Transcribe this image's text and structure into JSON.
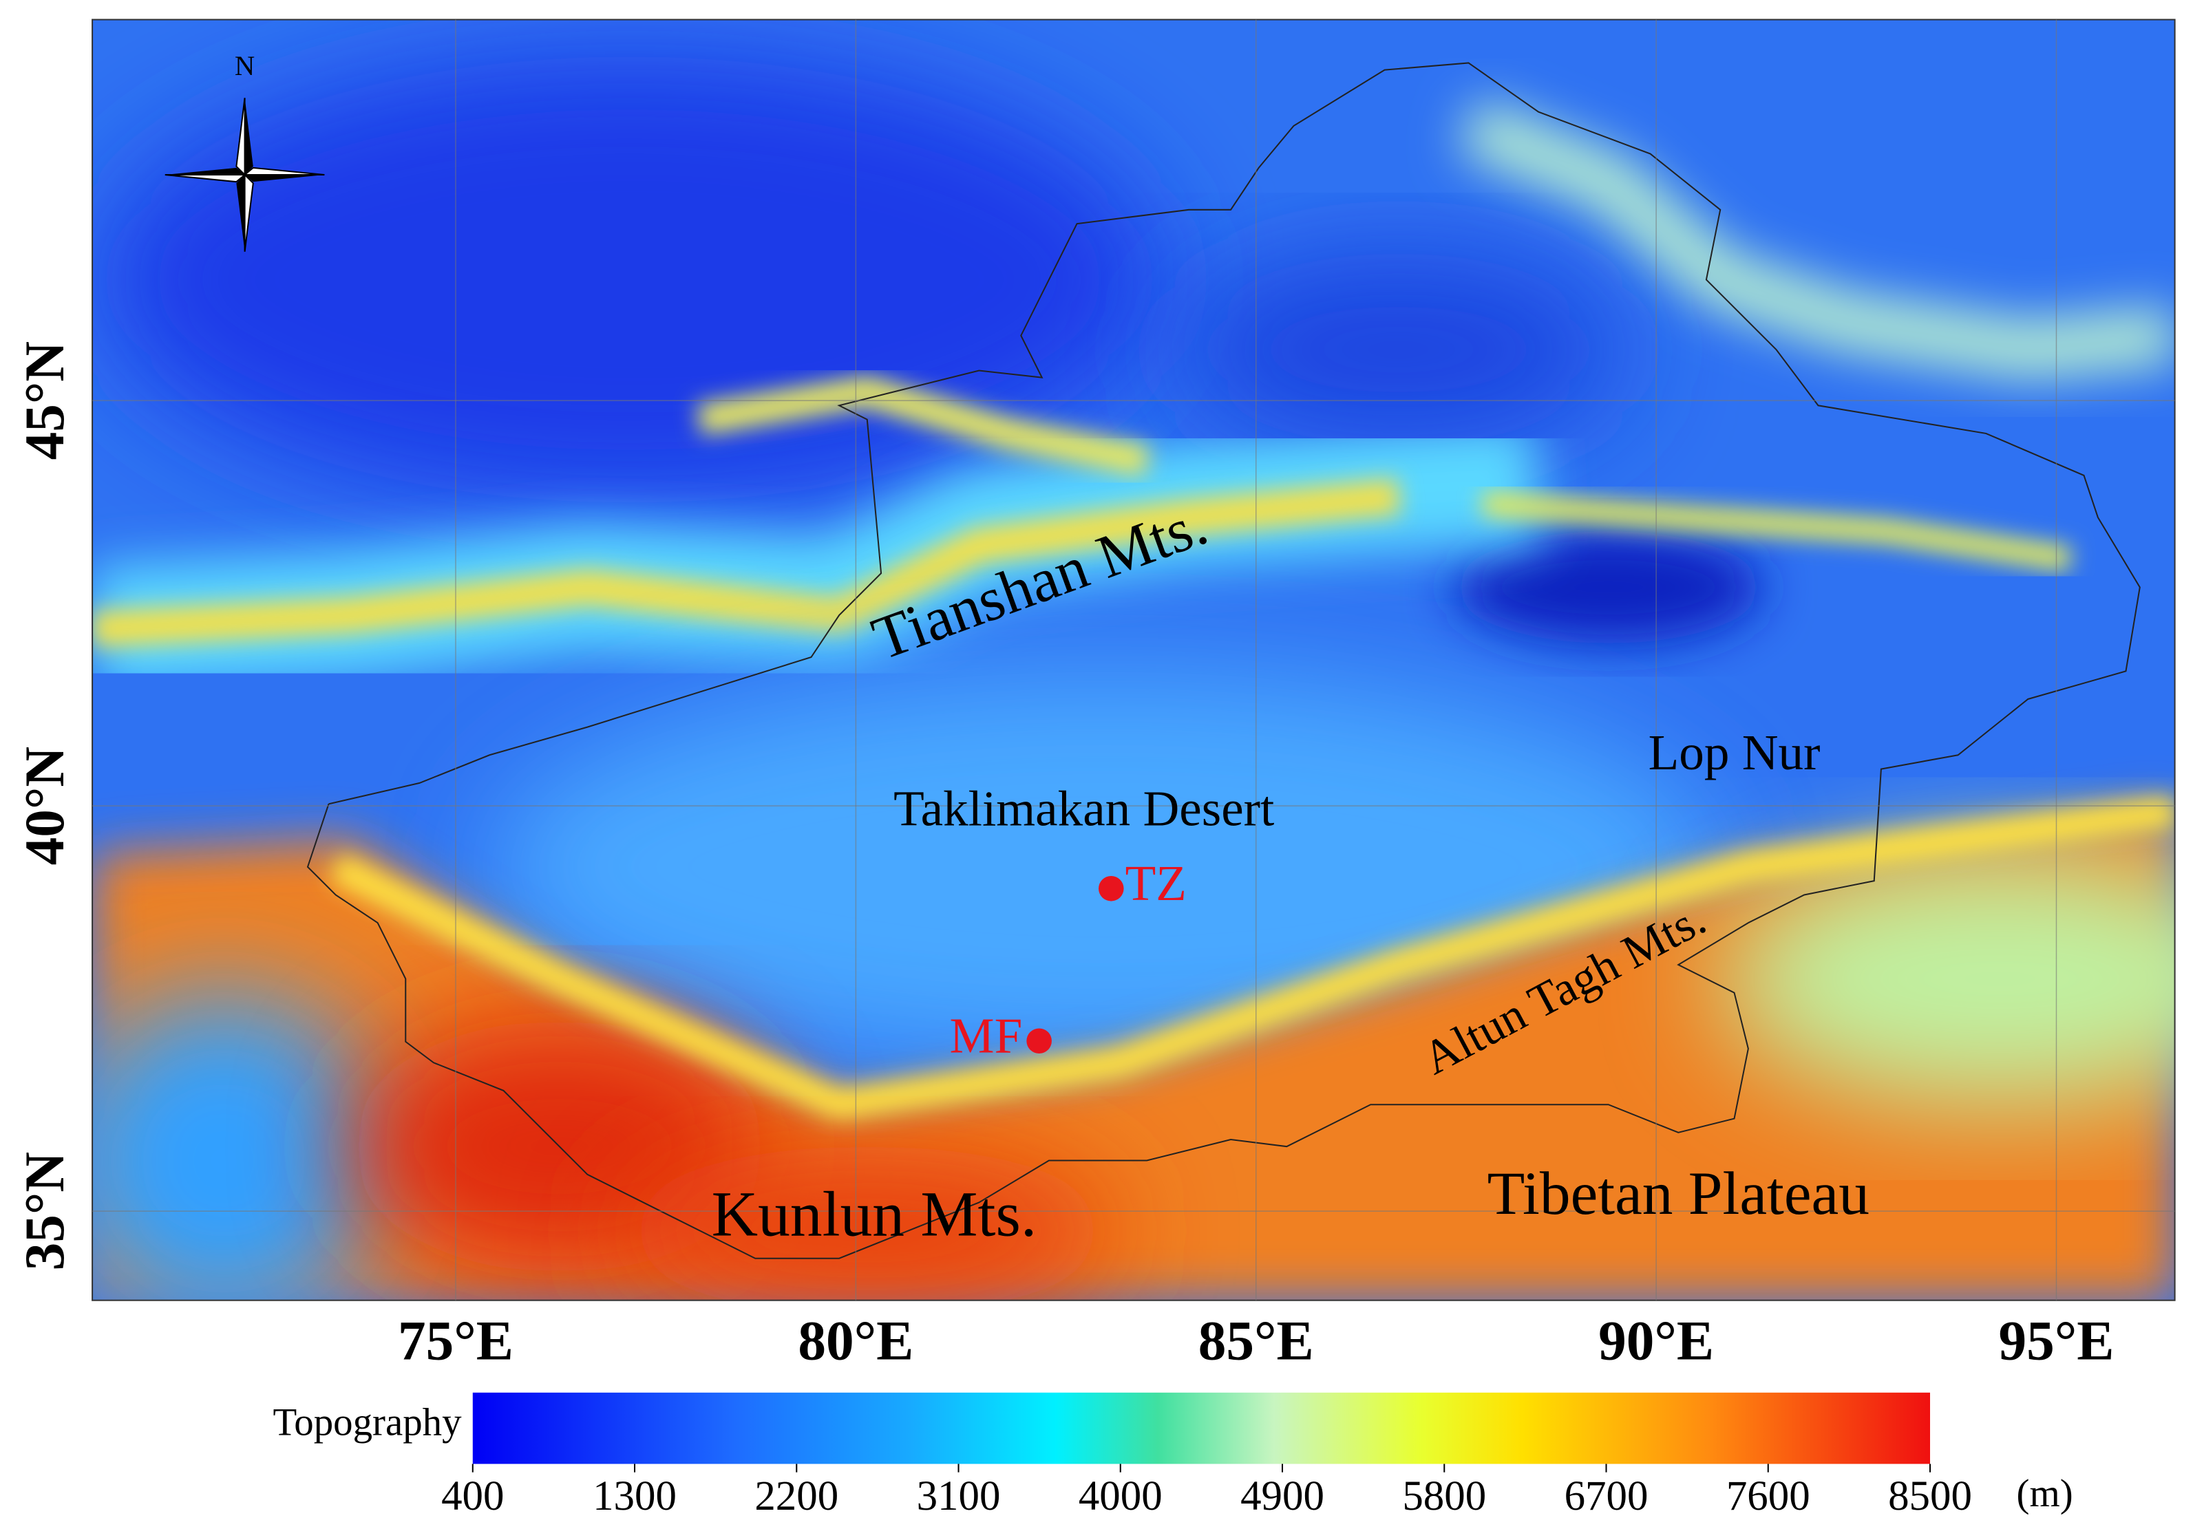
{
  "map": {
    "north_label": "N",
    "xlim": [
      70.46,
      96.48
    ],
    "ylim": [
      33.9,
      49.7
    ],
    "xticks": [
      {
        "value": 75,
        "label": "75°E"
      },
      {
        "value": 80,
        "label": "80°E"
      },
      {
        "value": 85,
        "label": "85°E"
      },
      {
        "value": 90,
        "label": "90°E"
      },
      {
        "value": 95,
        "label": "95°E"
      }
    ],
    "yticks": [
      {
        "value": 35,
        "label": "35°N"
      },
      {
        "value": 40,
        "label": "40°N"
      },
      {
        "value": 45,
        "label": "45°N"
      }
    ],
    "grid": true,
    "region_labels": [
      "Tianshan Mts.",
      "Taklimakan Desert",
      "Lop Nur",
      "Altun Tagh Mts.",
      "Kunlun Mts.",
      "Tibetan Plateau"
    ],
    "sites": [
      {
        "name": "TZ",
        "lon": 83.19,
        "lat": 38.98,
        "color": "#e8141e"
      },
      {
        "name": "MF",
        "lon": 82.29,
        "lat": 37.1,
        "color": "#e8141e"
      }
    ],
    "colorbar": {
      "label": "Topography",
      "unit": "(m)",
      "lim": [
        400,
        8500
      ],
      "ticks": [
        400,
        1300,
        2200,
        3100,
        4000,
        4900,
        5800,
        6700,
        7600,
        8500
      ]
    }
  }
}
